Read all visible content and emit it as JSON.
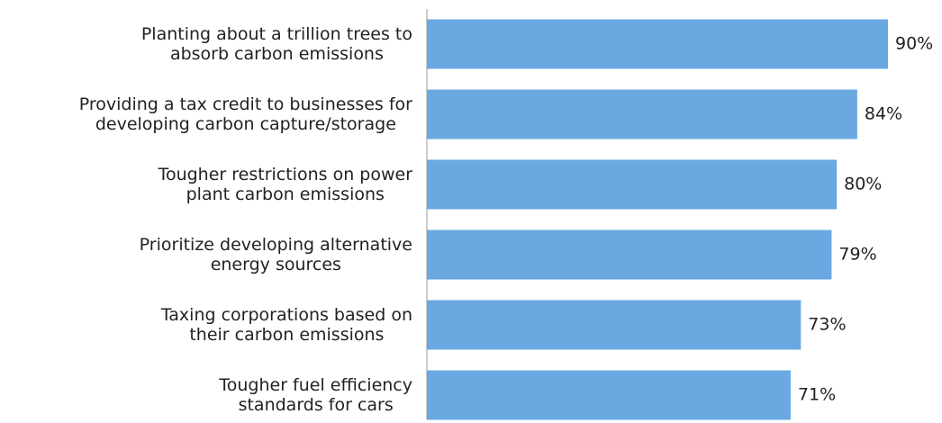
{
  "chart_data": {
    "type": "bar",
    "orientation": "horizontal",
    "categories": [
      "Planting about a trillion trees to\nabsorb carbon emissions",
      "Providing a tax credit to businesses for\ndeveloping carbon capture/storage",
      "Tougher restrictions on power\nplant carbon emissions",
      "Prioritize developing alternative\nenergy sources",
      "Taxing corporations based on\ntheir carbon emissions",
      "Tougher fuel efficiency\nstandards for cars"
    ],
    "values": [
      90,
      84,
      80,
      79,
      73,
      71
    ],
    "value_labels": [
      "90%",
      "84%",
      "80%",
      "79%",
      "73%",
      "71%"
    ],
    "color": "#6aa8e2"
  }
}
